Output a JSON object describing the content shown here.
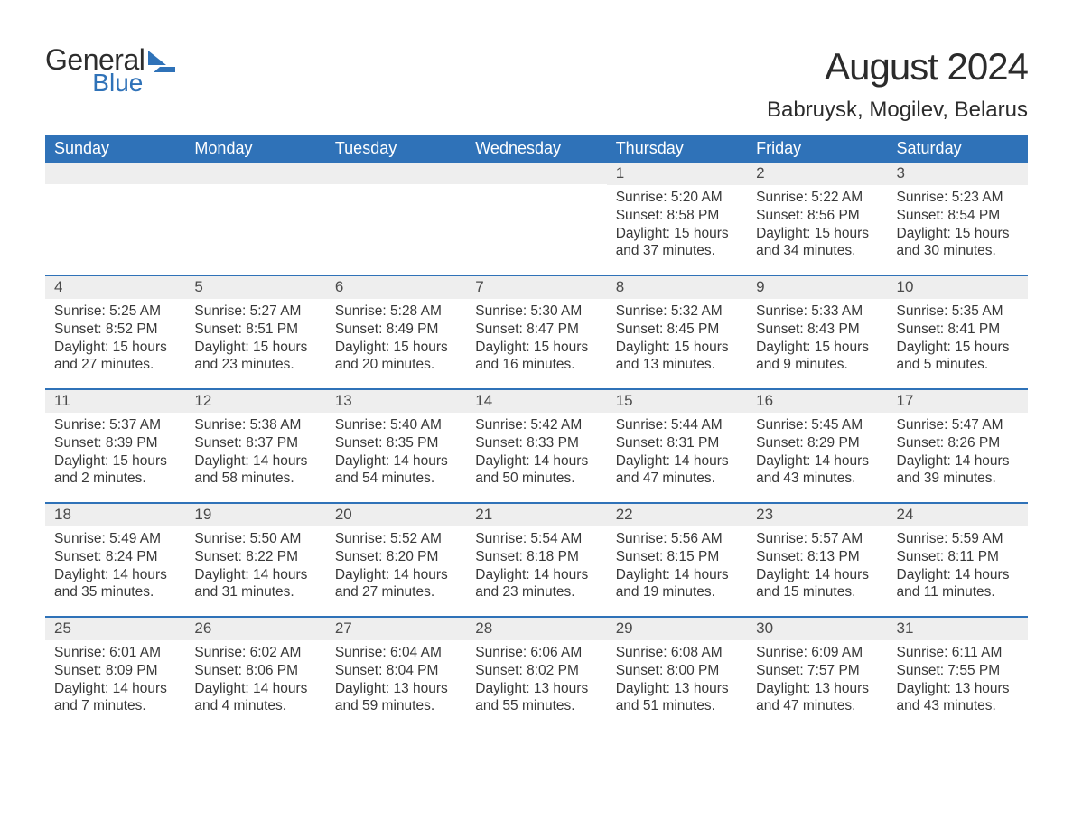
{
  "brand": {
    "line1": "General",
    "line2": "Blue"
  },
  "title": "August 2024",
  "location": "Babruysk, Mogilev, Belarus",
  "colors": {
    "header_bg": "#2f72b8",
    "header_text": "#ffffff",
    "daynum_bg": "#eeeeee",
    "body_text": "#383838",
    "rule": "#2f72b8",
    "page_bg": "#ffffff"
  },
  "weekdays": [
    "Sunday",
    "Monday",
    "Tuesday",
    "Wednesday",
    "Thursday",
    "Friday",
    "Saturday"
  ],
  "weeks": [
    [
      {
        "n": "",
        "sunrise": "",
        "sunset": "",
        "daylight": ""
      },
      {
        "n": "",
        "sunrise": "",
        "sunset": "",
        "daylight": ""
      },
      {
        "n": "",
        "sunrise": "",
        "sunset": "",
        "daylight": ""
      },
      {
        "n": "",
        "sunrise": "",
        "sunset": "",
        "daylight": ""
      },
      {
        "n": "1",
        "sunrise": "Sunrise: 5:20 AM",
        "sunset": "Sunset: 8:58 PM",
        "daylight": "Daylight: 15 hours and 37 minutes."
      },
      {
        "n": "2",
        "sunrise": "Sunrise: 5:22 AM",
        "sunset": "Sunset: 8:56 PM",
        "daylight": "Daylight: 15 hours and 34 minutes."
      },
      {
        "n": "3",
        "sunrise": "Sunrise: 5:23 AM",
        "sunset": "Sunset: 8:54 PM",
        "daylight": "Daylight: 15 hours and 30 minutes."
      }
    ],
    [
      {
        "n": "4",
        "sunrise": "Sunrise: 5:25 AM",
        "sunset": "Sunset: 8:52 PM",
        "daylight": "Daylight: 15 hours and 27 minutes."
      },
      {
        "n": "5",
        "sunrise": "Sunrise: 5:27 AM",
        "sunset": "Sunset: 8:51 PM",
        "daylight": "Daylight: 15 hours and 23 minutes."
      },
      {
        "n": "6",
        "sunrise": "Sunrise: 5:28 AM",
        "sunset": "Sunset: 8:49 PM",
        "daylight": "Daylight: 15 hours and 20 minutes."
      },
      {
        "n": "7",
        "sunrise": "Sunrise: 5:30 AM",
        "sunset": "Sunset: 8:47 PM",
        "daylight": "Daylight: 15 hours and 16 minutes."
      },
      {
        "n": "8",
        "sunrise": "Sunrise: 5:32 AM",
        "sunset": "Sunset: 8:45 PM",
        "daylight": "Daylight: 15 hours and 13 minutes."
      },
      {
        "n": "9",
        "sunrise": "Sunrise: 5:33 AM",
        "sunset": "Sunset: 8:43 PM",
        "daylight": "Daylight: 15 hours and 9 minutes."
      },
      {
        "n": "10",
        "sunrise": "Sunrise: 5:35 AM",
        "sunset": "Sunset: 8:41 PM",
        "daylight": "Daylight: 15 hours and 5 minutes."
      }
    ],
    [
      {
        "n": "11",
        "sunrise": "Sunrise: 5:37 AM",
        "sunset": "Sunset: 8:39 PM",
        "daylight": "Daylight: 15 hours and 2 minutes."
      },
      {
        "n": "12",
        "sunrise": "Sunrise: 5:38 AM",
        "sunset": "Sunset: 8:37 PM",
        "daylight": "Daylight: 14 hours and 58 minutes."
      },
      {
        "n": "13",
        "sunrise": "Sunrise: 5:40 AM",
        "sunset": "Sunset: 8:35 PM",
        "daylight": "Daylight: 14 hours and 54 minutes."
      },
      {
        "n": "14",
        "sunrise": "Sunrise: 5:42 AM",
        "sunset": "Sunset: 8:33 PM",
        "daylight": "Daylight: 14 hours and 50 minutes."
      },
      {
        "n": "15",
        "sunrise": "Sunrise: 5:44 AM",
        "sunset": "Sunset: 8:31 PM",
        "daylight": "Daylight: 14 hours and 47 minutes."
      },
      {
        "n": "16",
        "sunrise": "Sunrise: 5:45 AM",
        "sunset": "Sunset: 8:29 PM",
        "daylight": "Daylight: 14 hours and 43 minutes."
      },
      {
        "n": "17",
        "sunrise": "Sunrise: 5:47 AM",
        "sunset": "Sunset: 8:26 PM",
        "daylight": "Daylight: 14 hours and 39 minutes."
      }
    ],
    [
      {
        "n": "18",
        "sunrise": "Sunrise: 5:49 AM",
        "sunset": "Sunset: 8:24 PM",
        "daylight": "Daylight: 14 hours and 35 minutes."
      },
      {
        "n": "19",
        "sunrise": "Sunrise: 5:50 AM",
        "sunset": "Sunset: 8:22 PM",
        "daylight": "Daylight: 14 hours and 31 minutes."
      },
      {
        "n": "20",
        "sunrise": "Sunrise: 5:52 AM",
        "sunset": "Sunset: 8:20 PM",
        "daylight": "Daylight: 14 hours and 27 minutes."
      },
      {
        "n": "21",
        "sunrise": "Sunrise: 5:54 AM",
        "sunset": "Sunset: 8:18 PM",
        "daylight": "Daylight: 14 hours and 23 minutes."
      },
      {
        "n": "22",
        "sunrise": "Sunrise: 5:56 AM",
        "sunset": "Sunset: 8:15 PM",
        "daylight": "Daylight: 14 hours and 19 minutes."
      },
      {
        "n": "23",
        "sunrise": "Sunrise: 5:57 AM",
        "sunset": "Sunset: 8:13 PM",
        "daylight": "Daylight: 14 hours and 15 minutes."
      },
      {
        "n": "24",
        "sunrise": "Sunrise: 5:59 AM",
        "sunset": "Sunset: 8:11 PM",
        "daylight": "Daylight: 14 hours and 11 minutes."
      }
    ],
    [
      {
        "n": "25",
        "sunrise": "Sunrise: 6:01 AM",
        "sunset": "Sunset: 8:09 PM",
        "daylight": "Daylight: 14 hours and 7 minutes."
      },
      {
        "n": "26",
        "sunrise": "Sunrise: 6:02 AM",
        "sunset": "Sunset: 8:06 PM",
        "daylight": "Daylight: 14 hours and 4 minutes."
      },
      {
        "n": "27",
        "sunrise": "Sunrise: 6:04 AM",
        "sunset": "Sunset: 8:04 PM",
        "daylight": "Daylight: 13 hours and 59 minutes."
      },
      {
        "n": "28",
        "sunrise": "Sunrise: 6:06 AM",
        "sunset": "Sunset: 8:02 PM",
        "daylight": "Daylight: 13 hours and 55 minutes."
      },
      {
        "n": "29",
        "sunrise": "Sunrise: 6:08 AM",
        "sunset": "Sunset: 8:00 PM",
        "daylight": "Daylight: 13 hours and 51 minutes."
      },
      {
        "n": "30",
        "sunrise": "Sunrise: 6:09 AM",
        "sunset": "Sunset: 7:57 PM",
        "daylight": "Daylight: 13 hours and 47 minutes."
      },
      {
        "n": "31",
        "sunrise": "Sunrise: 6:11 AM",
        "sunset": "Sunset: 7:55 PM",
        "daylight": "Daylight: 13 hours and 43 minutes."
      }
    ]
  ]
}
